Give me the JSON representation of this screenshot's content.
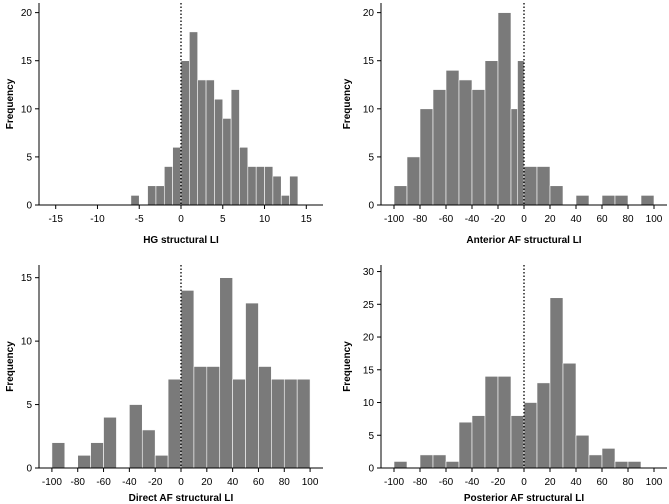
{
  "chart_data": [
    {
      "type": "bar",
      "xlabel": "HG structural LI",
      "ylabel": "Frequency",
      "xlim": [
        -17,
        17
      ],
      "ylim": [
        0,
        21
      ],
      "xticks": [
        -15,
        -10,
        -5,
        0,
        5,
        10,
        15
      ],
      "yticks": [
        0,
        5,
        10,
        15,
        20
      ],
      "bin_width": 1,
      "bins": [
        {
          "left": -6,
          "value": 1
        },
        {
          "left": -5,
          "value": 0
        },
        {
          "left": -4,
          "value": 2
        },
        {
          "left": -3,
          "value": 2
        },
        {
          "left": -2,
          "value": 4
        },
        {
          "left": -1,
          "value": 6
        },
        {
          "left": 0,
          "value": 15
        },
        {
          "left": 1,
          "value": 18
        },
        {
          "left": 2,
          "value": 13
        },
        {
          "left": 3,
          "value": 13
        },
        {
          "left": 4,
          "value": 11
        },
        {
          "left": 5,
          "value": 9
        },
        {
          "left": 6,
          "value": 12
        },
        {
          "left": 7,
          "value": 6
        },
        {
          "left": 8,
          "value": 4
        },
        {
          "left": 9,
          "value": 4
        },
        {
          "left": 10,
          "value": 4
        },
        {
          "left": 11,
          "value": 3
        },
        {
          "left": 12,
          "value": 1
        },
        {
          "left": 13,
          "value": 3
        }
      ],
      "vline": 0
    },
    {
      "type": "bar",
      "xlabel": "Anterior AF structural LI",
      "ylabel": "Frequency",
      "xlim": [
        -110,
        110
      ],
      "ylim": [
        0,
        21
      ],
      "xticks": [
        -100,
        -80,
        -60,
        -40,
        -20,
        0,
        20,
        40,
        60,
        80,
        100
      ],
      "yticks": [
        0,
        5,
        10,
        15,
        20
      ],
      "bin_width": 10,
      "bins": [
        {
          "left": -100,
          "value": 2
        },
        {
          "left": -90,
          "value": 5
        },
        {
          "left": -80,
          "value": 10
        },
        {
          "left": -70,
          "value": 12
        },
        {
          "left": -60,
          "value": 14
        },
        {
          "left": -50,
          "value": 13
        },
        {
          "left": -40,
          "value": 12
        },
        {
          "left": -30,
          "value": 15
        },
        {
          "left": -20,
          "value": 20
        },
        {
          "left": -10,
          "value": 10
        },
        {
          "left": -5,
          "value": 15,
          "width": 5
        },
        {
          "left": 0,
          "value": 4
        },
        {
          "left": 10,
          "value": 4
        },
        {
          "left": 20,
          "value": 2
        },
        {
          "left": 30,
          "value": 0
        },
        {
          "left": 40,
          "value": 1
        },
        {
          "left": 50,
          "value": 0
        },
        {
          "left": 60,
          "value": 1
        },
        {
          "left": 70,
          "value": 1
        },
        {
          "left": 80,
          "value": 0
        },
        {
          "left": 90,
          "value": 1
        }
      ],
      "vline": 0
    },
    {
      "type": "bar",
      "xlabel": "Direct AF structural LI",
      "ylabel": "Frequency",
      "xlim": [
        -110,
        110
      ],
      "ylim": [
        0,
        16
      ],
      "xticks": [
        -100,
        -80,
        -60,
        -40,
        -20,
        0,
        20,
        40,
        60,
        80,
        100
      ],
      "yticks": [
        0,
        5,
        10,
        15
      ],
      "bin_width": 10,
      "bins": [
        {
          "left": -100,
          "value": 2
        },
        {
          "left": -90,
          "value": 0
        },
        {
          "left": -80,
          "value": 1
        },
        {
          "left": -70,
          "value": 2
        },
        {
          "left": -60,
          "value": 4
        },
        {
          "left": -50,
          "value": 0
        },
        {
          "left": -40,
          "value": 5
        },
        {
          "left": -30,
          "value": 3
        },
        {
          "left": -20,
          "value": 1
        },
        {
          "left": -10,
          "value": 7
        },
        {
          "left": 0,
          "value": 14
        },
        {
          "left": 10,
          "value": 8
        },
        {
          "left": 20,
          "value": 8
        },
        {
          "left": 30,
          "value": 15
        },
        {
          "left": 40,
          "value": 7
        },
        {
          "left": 50,
          "value": 13
        },
        {
          "left": 60,
          "value": 8
        },
        {
          "left": 70,
          "value": 7
        },
        {
          "left": 80,
          "value": 7
        },
        {
          "left": 90,
          "value": 7
        }
      ],
      "vline": 0
    },
    {
      "type": "bar",
      "xlabel": "Posterior AF structural LI",
      "ylabel": "Frequency",
      "xlim": [
        -110,
        110
      ],
      "ylim": [
        0,
        31
      ],
      "xticks": [
        -100,
        -80,
        -60,
        -40,
        -20,
        0,
        20,
        40,
        60,
        80,
        100
      ],
      "yticks": [
        0,
        5,
        10,
        15,
        20,
        25,
        30
      ],
      "bin_width": 10,
      "bins": [
        {
          "left": -100,
          "value": 1
        },
        {
          "left": -90,
          "value": 0
        },
        {
          "left": -80,
          "value": 2
        },
        {
          "left": -70,
          "value": 2
        },
        {
          "left": -60,
          "value": 1
        },
        {
          "left": -50,
          "value": 7
        },
        {
          "left": -40,
          "value": 8
        },
        {
          "left": -30,
          "value": 14
        },
        {
          "left": -20,
          "value": 14
        },
        {
          "left": -10,
          "value": 8
        },
        {
          "left": 0,
          "value": 10
        },
        {
          "left": 10,
          "value": 13
        },
        {
          "left": 20,
          "value": 26
        },
        {
          "left": 30,
          "value": 16
        },
        {
          "left": 40,
          "value": 5
        },
        {
          "left": 50,
          "value": 2
        },
        {
          "left": 60,
          "value": 3
        },
        {
          "left": 70,
          "value": 1
        },
        {
          "left": 80,
          "value": 1
        }
      ],
      "vline": 0
    }
  ]
}
